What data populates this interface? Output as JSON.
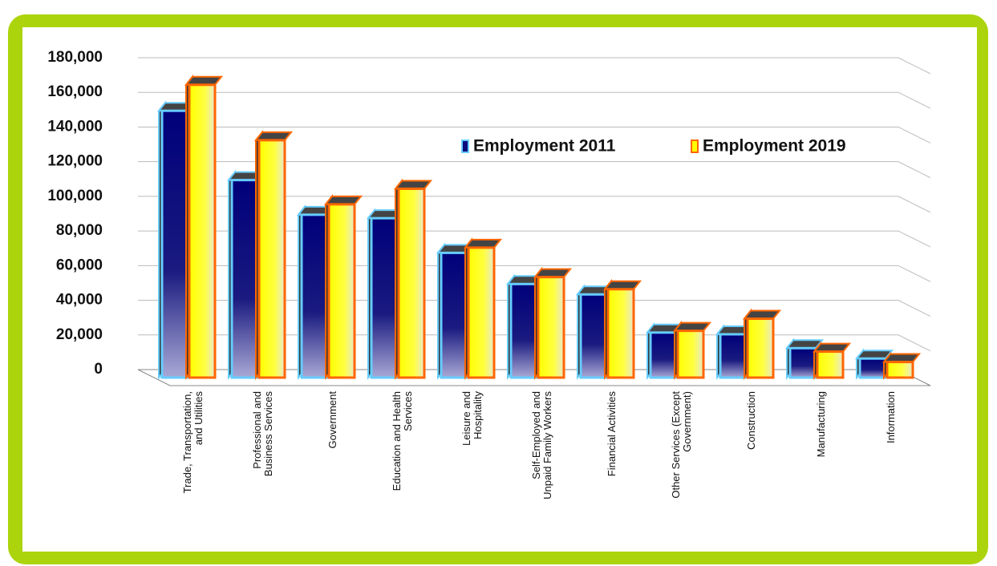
{
  "chart_data": {
    "type": "bar3d",
    "categories": [
      "Trade, Transportation, and Utilities",
      "Professional and Business Services",
      "Government",
      "Education and Health Services",
      "Leisure and Hospitality",
      "Self-Employed and Unpaid Family Workers",
      "Financial Activities",
      "Other Services (Except Government)",
      "Construction",
      "Manufacturing",
      "Information"
    ],
    "series": [
      {
        "name": "Employment 2011",
        "color": "#0a0a7a",
        "edge": "#66ccff",
        "values": [
          154000,
          114000,
          94000,
          92000,
          72000,
          54000,
          48000,
          26000,
          25000,
          17000,
          11000
        ]
      },
      {
        "name": "Employment 2019",
        "color": "#ffff00",
        "edge": "#ff6600",
        "values": [
          169000,
          137000,
          100000,
          109000,
          75000,
          58000,
          51000,
          27000,
          34000,
          15000,
          9000
        ]
      }
    ],
    "ylim": [
      0,
      180000
    ],
    "yticks": [
      0,
      {
        "value": 20000,
        "label": "20,000"
      },
      {
        "value": 40000,
        "label": "40,000"
      },
      {
        "value": 60000,
        "label": "60,000"
      },
      {
        "value": 80000,
        "label": "80,000"
      },
      {
        "value": 100000,
        "label": "100,000"
      },
      {
        "value": 120000,
        "label": "120,000"
      },
      {
        "value": 140000,
        "label": "140,000"
      },
      {
        "value": 160000,
        "label": "160,000"
      },
      {
        "value": 180000,
        "label": "180,000"
      }
    ],
    "grid": true
  }
}
